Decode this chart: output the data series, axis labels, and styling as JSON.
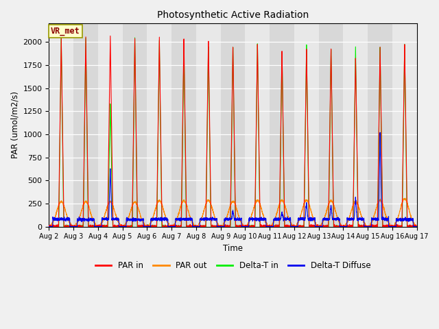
{
  "title": "Photosynthetic Active Radiation",
  "ylabel": "PAR (umol/m2/s)",
  "xlabel": "Time",
  "annotation": "VR_met",
  "ylim": [
    0,
    2200
  ],
  "colors": {
    "PAR in": "#ff0000",
    "PAR out": "#ff8800",
    "Delta-T in": "#00ee00",
    "Delta-T Diffuse": "#0000ee"
  },
  "x_tick_labels": [
    "Aug 2",
    "Aug 3",
    "Aug 4",
    "Aug 5",
    "Aug 6",
    "Aug 7",
    "Aug 8",
    "Aug 9",
    "Aug 10",
    "Aug 11",
    "Aug 12",
    "Aug 13",
    "Aug 14",
    "Aug 15",
    "Aug 16",
    "Aug 17"
  ],
  "n_days": 15,
  "stripe_colors": [
    "#e8e8e8",
    "#d8d8d8"
  ],
  "fig_bg": "#f0f0f0",
  "par_in_peaks": [
    2050,
    2060,
    2070,
    2060,
    2060,
    2060,
    2035,
    1970,
    2000,
    1930,
    1930,
    1935,
    1840,
    1950,
    1985
  ],
  "par_out_peaks": [
    270,
    270,
    270,
    265,
    280,
    280,
    285,
    270,
    285,
    285,
    285,
    280,
    270,
    285,
    300
  ],
  "delta_t_in_peaks": [
    2050,
    2055,
    1340,
    2060,
    2045,
    1975,
    1975,
    1970,
    2010,
    1920,
    1985,
    1945,
    1950,
    1945,
    1985
  ],
  "delta_t_diffuse_day_peaks": [
    105,
    100,
    640,
    95,
    100,
    95,
    105,
    170,
    110,
    155,
    265,
    230,
    325,
    1020,
    90
  ],
  "delta_t_diffuse_base": [
    80,
    75,
    80,
    75,
    80,
    80,
    80,
    80,
    80,
    80,
    80,
    80,
    80,
    80,
    75
  ]
}
